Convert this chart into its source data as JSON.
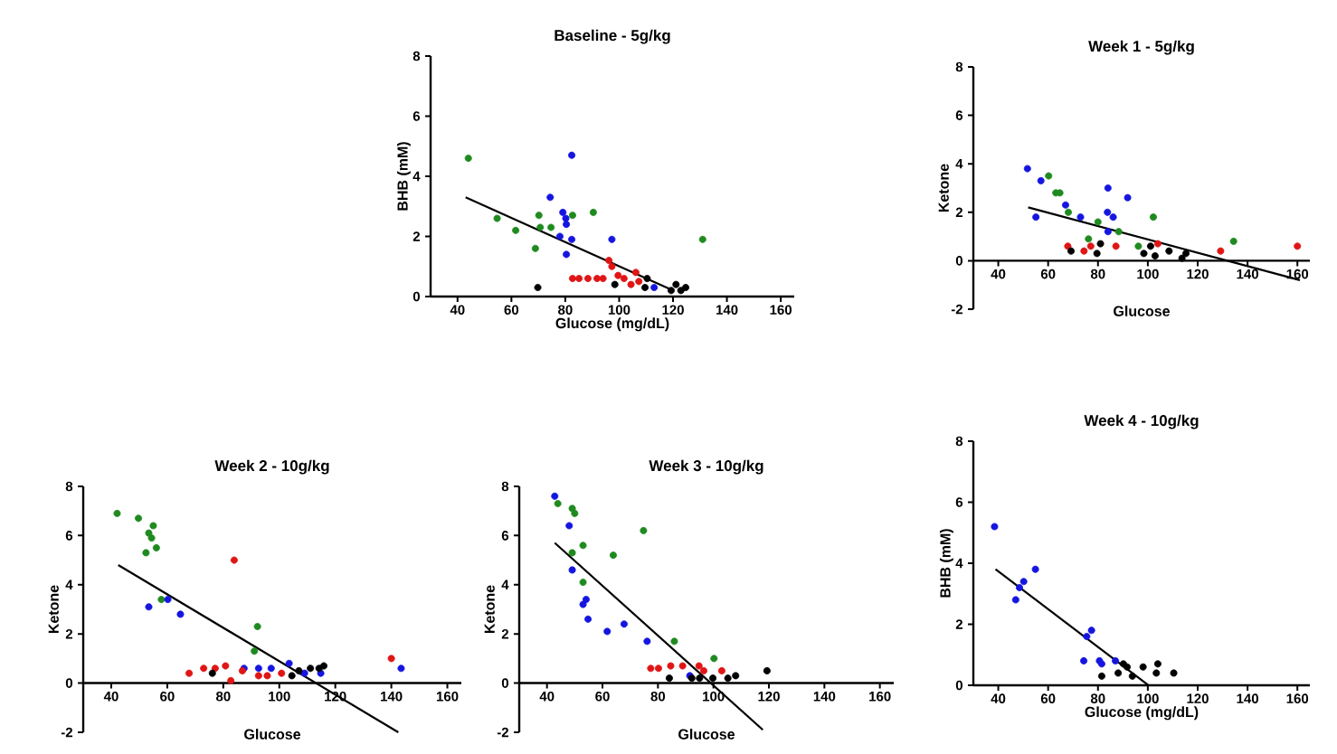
{
  "chart_data": [
    {
      "type": "scatter",
      "title": "Baseline - 5g/kg",
      "xlabel": "Glucose (mg/dL)",
      "ylabel": "BHB (mM)",
      "marker": "circle",
      "xlim": [
        30,
        165
      ],
      "ylim": [
        0,
        8
      ],
      "xticks": [
        40,
        60,
        80,
        100,
        120,
        140,
        160
      ],
      "yticks": [
        0,
        2,
        4,
        6,
        8
      ],
      "series": [
        {
          "color": "#1f8a1f",
          "x": [
            44,
            54.7,
            61.6,
            70.2,
            70.7,
            74.7,
            68.9,
            82.7,
            90.4,
            131
          ],
          "values": [
            4.6,
            2.6,
            2.2,
            2.7,
            2.3,
            2.3,
            1.6,
            2.7,
            2.8,
            1.9
          ]
        },
        {
          "color": "#1515e0",
          "x": [
            74.4,
            79.1,
            80.2,
            80.4,
            78,
            82.4,
            82.4,
            80.4,
            97.3,
            113
          ],
          "values": [
            3.3,
            2.8,
            2.6,
            2.4,
            2.0,
            4.7,
            1.9,
            1.4,
            1.9,
            0.3
          ]
        },
        {
          "color": "#e01515",
          "x": [
            82.7,
            85.1,
            88.4,
            91.8,
            94,
            96.2,
            97.3,
            99.6,
            101.8,
            104.4,
            106.2,
            107.3
          ],
          "values": [
            0.6,
            0.6,
            0.6,
            0.6,
            0.6,
            1.2,
            1.0,
            0.7,
            0.6,
            0.4,
            0.8,
            0.5
          ]
        },
        {
          "color": "#000000",
          "x": [
            69.8,
            98.4,
            110.4,
            109.6,
            119.3,
            121.1,
            122.9,
            124.7
          ],
          "values": [
            0.3,
            0.4,
            0.6,
            0.3,
            0.2,
            0.4,
            0.2,
            0.3
          ]
        },
        {
          "type": "line",
          "marker": "none",
          "color": "#000000",
          "x": [
            43,
            120
          ],
          "values": [
            3.3,
            0.2
          ]
        }
      ]
    },
    {
      "type": "scatter",
      "title": "Week 1 - 5g/kg",
      "xlabel": "Glucose",
      "ylabel": "Ketone",
      "marker": "circle",
      "xlim": [
        30,
        165
      ],
      "ylim": [
        -2,
        8
      ],
      "xticks": [
        40,
        60,
        80,
        100,
        120,
        140,
        160
      ],
      "yticks": [
        -2,
        0,
        2,
        4,
        6,
        8
      ],
      "series": [
        {
          "color": "#1515e0",
          "x": [
            51.7,
            57.1,
            55.1,
            67,
            73,
            84,
            91.9,
            83.8,
            86.1,
            84
          ],
          "values": [
            3.8,
            3.3,
            1.8,
            2.3,
            1.8,
            3.0,
            2.6,
            2.0,
            1.8,
            1.2
          ]
        },
        {
          "color": "#1f8a1f",
          "x": [
            60.2,
            63.1,
            64.7,
            68.1,
            76.2,
            80,
            88.3,
            96.2,
            102.2,
            134.4
          ],
          "values": [
            3.5,
            2.8,
            2.8,
            2.0,
            0.9,
            1.6,
            1.2,
            0.6,
            1.8,
            0.8
          ]
        },
        {
          "color": "#e01515",
          "x": [
            67.9,
            74.4,
            77.1,
            87.2,
            104,
            129.2,
            160
          ],
          "values": [
            0.6,
            0.4,
            0.6,
            0.6,
            0.7,
            0.4,
            0.6
          ]
        },
        {
          "color": "#000000",
          "x": [
            69.2,
            81,
            79.6,
            98.4,
            101.1,
            102.9,
            108.5,
            113.7,
            115.3
          ],
          "values": [
            0.4,
            0.7,
            0.3,
            0.3,
            0.6,
            0.2,
            0.4,
            0.1,
            0.3
          ]
        },
        {
          "type": "line",
          "marker": "none",
          "color": "#000000",
          "x": [
            52,
            161
          ],
          "values": [
            2.2,
            -0.8
          ]
        }
      ]
    },
    {
      "type": "scatter",
      "title": "Week 2 - 10g/kg",
      "xlabel": "Glucose",
      "ylabel": "Ketone",
      "marker": "circle",
      "xlim": [
        30,
        165
      ],
      "ylim": [
        -2,
        8
      ],
      "xticks": [
        40,
        60,
        80,
        100,
        120,
        140,
        160
      ],
      "yticks": [
        -2,
        0,
        2,
        4,
        6,
        8
      ],
      "series": [
        {
          "color": "#1f8a1f",
          "x": [
            42.1,
            49.7,
            55,
            53.4,
            54.4,
            52.4,
            56.1,
            57.9,
            92.2,
            91.1
          ],
          "values": [
            6.9,
            6.7,
            6.4,
            6.1,
            5.9,
            5.3,
            5.5,
            3.4,
            2.3,
            1.3
          ]
        },
        {
          "color": "#1515e0",
          "x": [
            53.4,
            60.2,
            64.7,
            87.4,
            92.6,
            97.1,
            103.5,
            109,
            114.8,
            143.5
          ],
          "values": [
            3.1,
            3.4,
            2.8,
            0.6,
            0.6,
            0.6,
            0.8,
            0.4,
            0.4,
            0.6
          ]
        },
        {
          "color": "#e01515",
          "x": [
            67.8,
            73,
            77.1,
            80.8,
            82.7,
            83.9,
            86.8,
            92.6,
            95.7,
            100.8,
            140
          ],
          "values": [
            0.4,
            0.6,
            0.6,
            0.7,
            0.1,
            5.0,
            0.5,
            0.3,
            0.3,
            0.4,
            1.0
          ]
        },
        {
          "color": "#000000",
          "x": [
            76.1,
            104.5,
            107,
            111.1,
            114.2,
            115.9
          ],
          "values": [
            0.4,
            0.3,
            0.5,
            0.6,
            0.6,
            0.7
          ]
        },
        {
          "type": "line",
          "marker": "none",
          "color": "#000000",
          "x": [
            42.5,
            142.5
          ],
          "values": [
            4.8,
            -2.0
          ]
        }
      ]
    },
    {
      "type": "scatter",
      "title": "Week 3 - 10g/kg",
      "xlabel": "Glucose",
      "ylabel": "Ketone",
      "marker": "circle",
      "xlim": [
        30,
        165
      ],
      "ylim": [
        -2,
        8
      ],
      "xticks": [
        40,
        60,
        80,
        100,
        120,
        140,
        160
      ],
      "yticks": [
        -2,
        0,
        2,
        4,
        6,
        8
      ],
      "series": [
        {
          "color": "#1515e0",
          "x": [
            42.8,
            48,
            49.1,
            53,
            54.1,
            54.8,
            61.7,
            67.8,
            76.1,
            91.5
          ],
          "values": [
            7.6,
            6.4,
            4.6,
            3.2,
            3.4,
            2.6,
            2.1,
            2.4,
            1.7,
            0.3
          ]
        },
        {
          "color": "#1f8a1f",
          "x": [
            43.9,
            49.1,
            50,
            49.1,
            53,
            53,
            63.9,
            74.8,
            85.9,
            100.2
          ],
          "values": [
            7.3,
            7.1,
            6.9,
            5.3,
            5.6,
            4.1,
            5.2,
            6.2,
            1.7,
            1.0
          ]
        },
        {
          "color": "#e01515",
          "x": [
            77.4,
            80.2,
            84.6,
            88.9,
            94.8,
            103,
            96.5
          ],
          "values": [
            0.6,
            0.6,
            0.7,
            0.7,
            0.7,
            0.5,
            0.5
          ]
        },
        {
          "color": "#000000",
          "x": [
            84.1,
            92.2,
            95,
            99.8,
            105.2,
            108,
            119.3
          ],
          "values": [
            0.2,
            0.2,
            0.2,
            0.2,
            0.2,
            0.3,
            0.5
          ]
        },
        {
          "type": "line",
          "marker": "none",
          "color": "#000000",
          "x": [
            42.8,
            117.8
          ],
          "values": [
            5.7,
            -1.9
          ]
        }
      ]
    },
    {
      "type": "scatter",
      "title": "Week 4 - 10g/kg",
      "xlabel": "Glucose (mg/dL)",
      "ylabel": "BHB (mM)",
      "marker": "circle",
      "xlim": [
        30,
        165
      ],
      "ylim": [
        0,
        8
      ],
      "xticks": [
        40,
        60,
        80,
        100,
        120,
        140,
        160
      ],
      "yticks": [
        0,
        2,
        4,
        6,
        8
      ],
      "series": [
        {
          "color": "#1515e0",
          "x": [
            38.5,
            47,
            48.5,
            50.2,
            54.9,
            75.5,
            77.4,
            74.3,
            80.6,
            81.5,
            87
          ],
          "values": [
            5.2,
            2.8,
            3.2,
            3.4,
            3.8,
            1.6,
            1.8,
            0.8,
            0.8,
            0.7,
            0.8
          ]
        },
        {
          "color": "#000000",
          "x": [
            81.5,
            88.1,
            90.2,
            91.7,
            93.8,
            98.1,
            103.4,
            104,
            110.4
          ],
          "values": [
            0.3,
            0.4,
            0.7,
            0.6,
            0.3,
            0.6,
            0.4,
            0.7,
            0.4
          ]
        },
        {
          "type": "line",
          "marker": "none",
          "color": "#000000",
          "x": [
            38.9,
            100.2
          ],
          "values": [
            3.8,
            0.0
          ]
        }
      ]
    }
  ]
}
